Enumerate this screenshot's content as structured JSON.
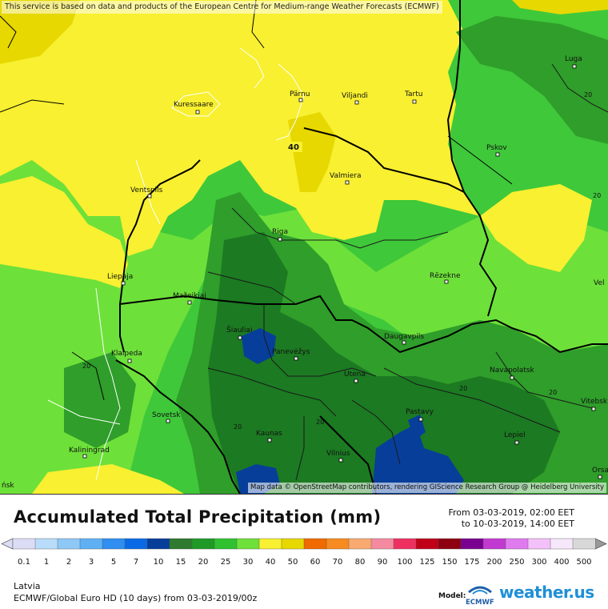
{
  "notice": "This service is based on data and products of the European Centre for Medium-range Weather Forecasts (ECMWF)",
  "attribution": "Map data © OpenStreetMap contributors, rendering GIScience Research Group @ Heidelberg University",
  "title": "Accumulated Total Precipitation (mm)",
  "range_from": "From 03-03-2019, 02:00 EET",
  "range_to": "to 10-03-2019, 14:00 EET",
  "region": "Latvia",
  "model_line": "ECMWF/Global Euro HD (10 days) from 03-03-2019/00z",
  "model_label": "Model:",
  "brand": "weather.us",
  "brand_badge": "ECMWF",
  "contour_value": "40",
  "contour_value_20": "20",
  "cities": [
    {
      "name": "Luga"
    },
    {
      "name": "Kuressaare"
    },
    {
      "name": "Pärnu"
    },
    {
      "name": "Viljandi"
    },
    {
      "name": "Tartu"
    },
    {
      "name": "Pskov"
    },
    {
      "name": "Valmiera"
    },
    {
      "name": "Ventspils"
    },
    {
      "name": "Riga"
    },
    {
      "name": "Liepaja"
    },
    {
      "name": "Rēzekne"
    },
    {
      "name": "Mažeikiai"
    },
    {
      "name": "Šiauliai"
    },
    {
      "name": "Panevėžys"
    },
    {
      "name": "Daugavpils"
    },
    {
      "name": "Klaipeda"
    },
    {
      "name": "Utena"
    },
    {
      "name": "Navapolatsk"
    },
    {
      "name": "Sovetsk"
    },
    {
      "name": "Pastavy"
    },
    {
      "name": "Vitebsk"
    },
    {
      "name": "Kaunas"
    },
    {
      "name": "Lepiel"
    },
    {
      "name": "Kaliningrad"
    },
    {
      "name": "Vilnius"
    },
    {
      "name": "Orsa"
    },
    {
      "name": "Vel"
    },
    {
      "name": "ńsk"
    }
  ],
  "legend": {
    "ticks": [
      "0.1",
      "1",
      "2",
      "3",
      "5",
      "7",
      "10",
      "15",
      "20",
      "25",
      "30",
      "40",
      "50",
      "60",
      "70",
      "80",
      "90",
      "100",
      "125",
      "150",
      "175",
      "200",
      "250",
      "300",
      "400",
      "500"
    ],
    "colors": [
      "#dcdcf5",
      "#b8dcfa",
      "#8ec8f7",
      "#5fb0f3",
      "#2f8ef0",
      "#0a6ae6",
      "#073e9a",
      "#2e7a2e",
      "#1f9a26",
      "#2fc12f",
      "#6ee03a",
      "#f8f030",
      "#e6d800",
      "#f06a00",
      "#f78a20",
      "#f9aa70",
      "#f48aa0",
      "#ee3060",
      "#c00018",
      "#8c0010",
      "#7a0090",
      "#c13ad0",
      "#e07aef",
      "#f4c0fa",
      "#f6e8fa",
      "#d8d8d8"
    ]
  }
}
